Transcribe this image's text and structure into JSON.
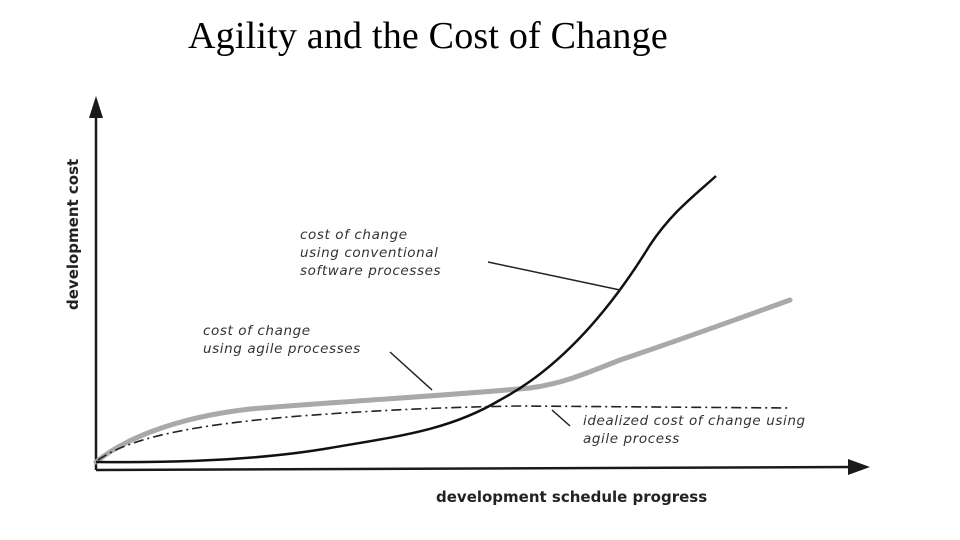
{
  "slide": {
    "title": "Agility and the Cost of Change"
  },
  "diagram": {
    "axes": {
      "x_label": "development schedule progress",
      "y_label": "development cost"
    },
    "annotations": {
      "conventional": [
        "cost of change",
        "using conventional",
        "software processes"
      ],
      "agile": [
        "cost of change",
        "using agile processes"
      ],
      "idealized": [
        "idealized cost of change using",
        "agile process"
      ]
    },
    "curves": [
      {
        "name": "conventional",
        "style": "solid-black"
      },
      {
        "name": "agile",
        "style": "thick-gray"
      },
      {
        "name": "idealized",
        "style": "dash-dot"
      }
    ],
    "colors": {
      "conventional": "#111111",
      "agile": "#a9a9a9",
      "idealized": "#222222",
      "axis": "#1a1a1a",
      "label": "#333333"
    }
  }
}
